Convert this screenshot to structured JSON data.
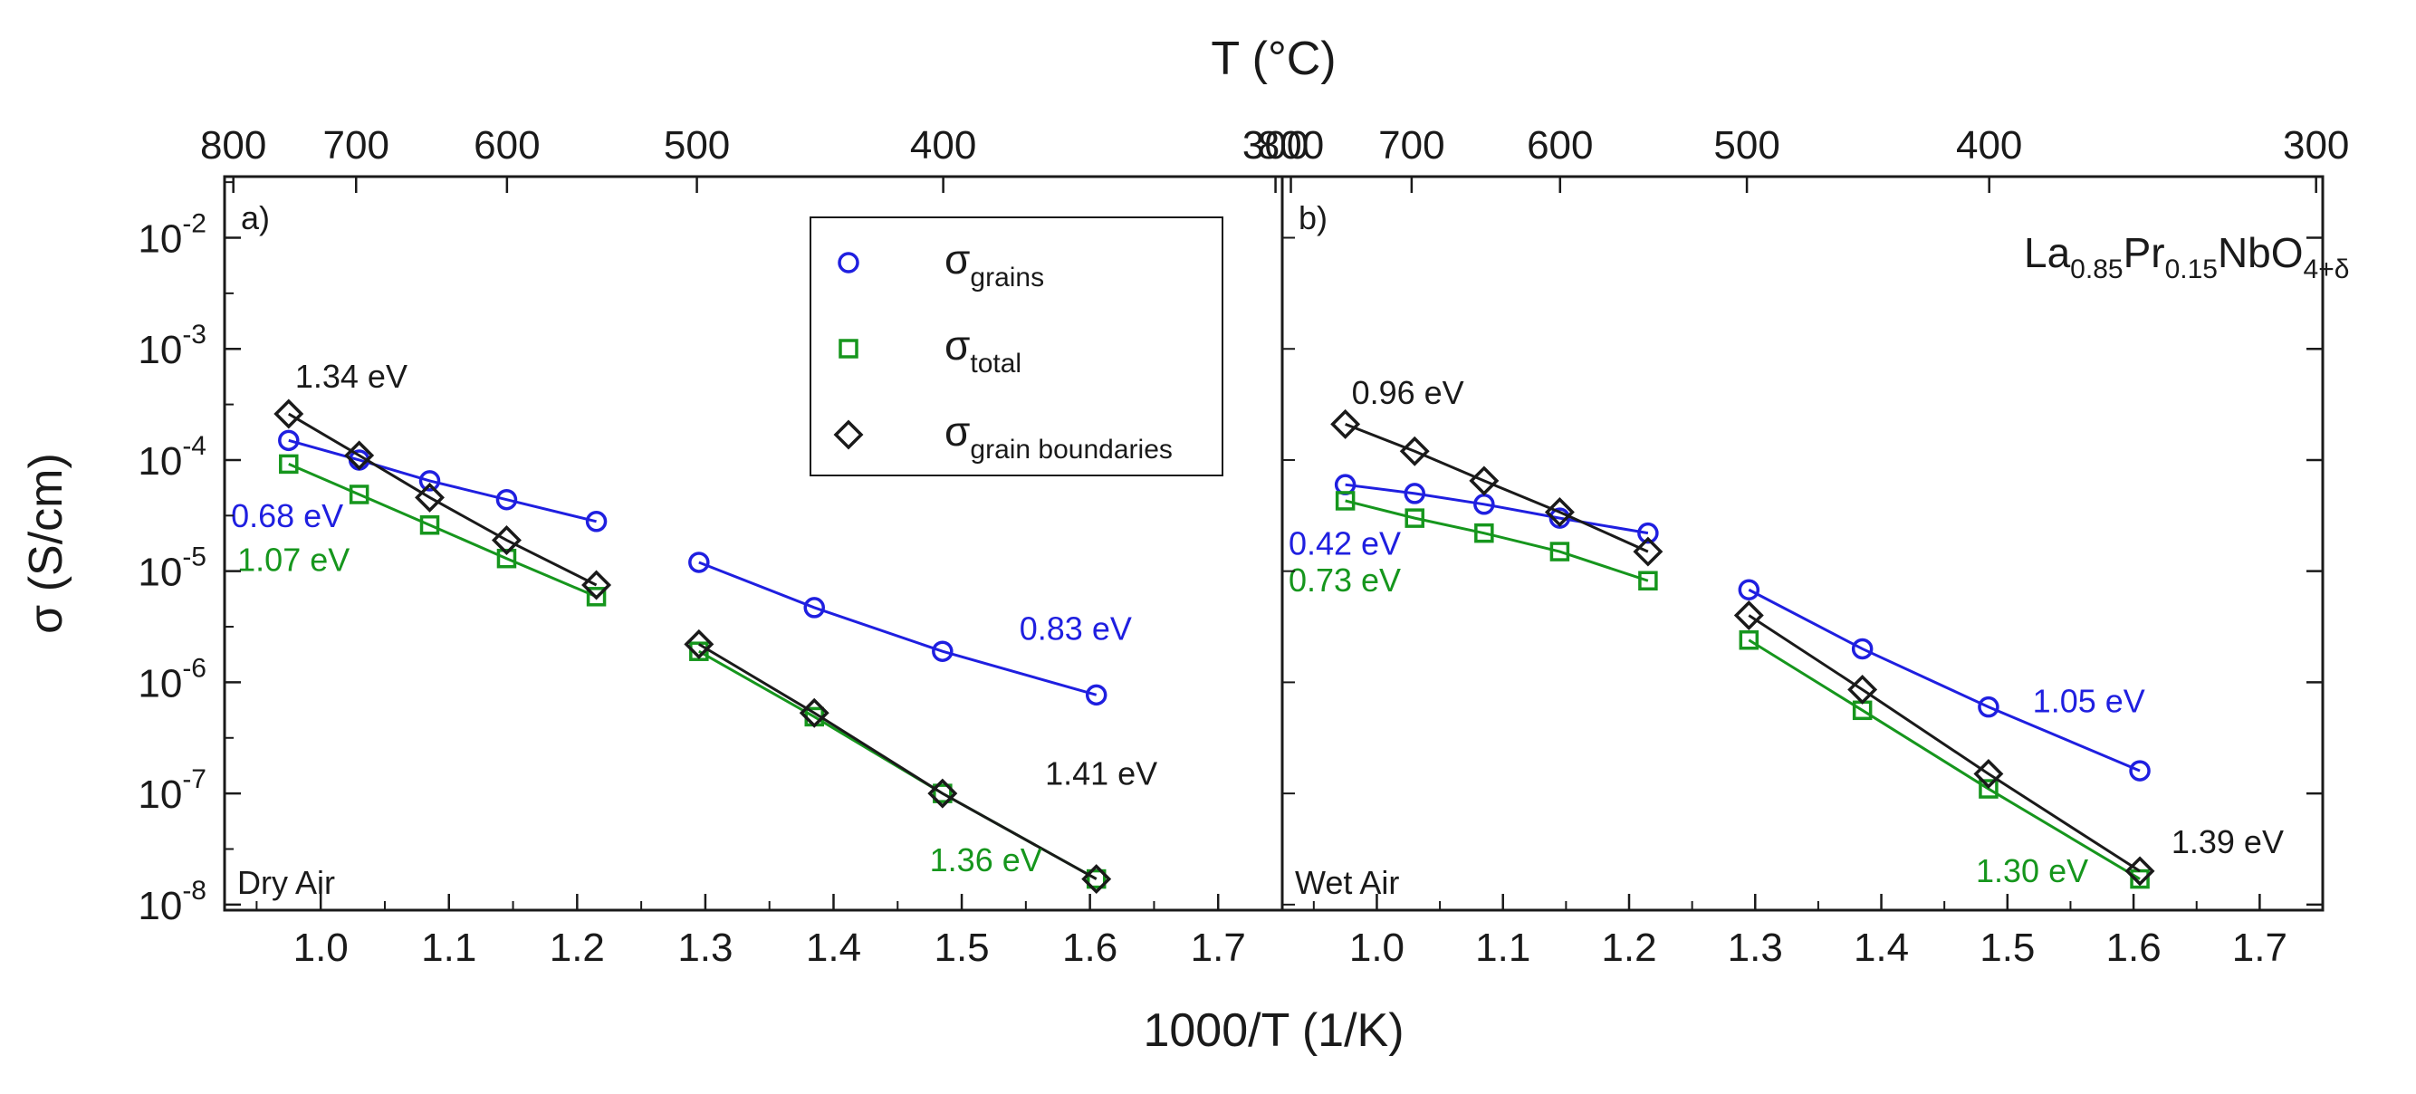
{
  "chart_data": {
    "type": "scatter",
    "xlabel": "1000/T (1/K)",
    "ylabel": "σ (S/cm)",
    "top_axis_label": "T (°C)",
    "x_scale": "linear",
    "y_scale": "log",
    "xlim": [
      0.925,
      1.75
    ],
    "ylim_log10": [
      -8.05,
      -1.45
    ],
    "x_ticks": [
      "1.0",
      "1.1",
      "1.2",
      "1.3",
      "1.4",
      "1.5",
      "1.6",
      "1.7"
    ],
    "y_ticks": [
      {
        "base": "10",
        "exp": "-8",
        "log": -8
      },
      {
        "base": "10",
        "exp": "-7",
        "log": -7
      },
      {
        "base": "10",
        "exp": "-6",
        "log": -6
      },
      {
        "base": "10",
        "exp": "-5",
        "log": -5
      },
      {
        "base": "10",
        "exp": "-4",
        "log": -4
      },
      {
        "base": "10",
        "exp": "-3",
        "log": -3
      },
      {
        "base": "10",
        "exp": "-2",
        "log": -2
      }
    ],
    "top_ticks_celsius": [
      800,
      700,
      600,
      500,
      400,
      300
    ],
    "legend": {
      "placement": "top-center of panel a",
      "items": [
        {
          "symbol": "σ",
          "sub": "grains",
          "series": "grains"
        },
        {
          "symbol": "σ",
          "sub": "total",
          "series": "total"
        },
        {
          "symbol": "σ",
          "sub": "grain boundaries",
          "series": "gb"
        }
      ]
    },
    "colors": {
      "grains": "#1f1fe0",
      "total": "#16961d",
      "gb": "#1a1a1a"
    },
    "markers": {
      "grains": "circle",
      "total": "square",
      "gb": "diamond"
    },
    "formula": {
      "parts": [
        "La",
        "0.85",
        "Pr",
        "0.15",
        "NbO",
        "4+δ"
      ]
    },
    "panels": [
      {
        "label": "a)",
        "condition": "Dry Air",
        "series": {
          "grains": {
            "high": {
              "x": [
                0.975,
                1.03,
                1.085,
                1.145,
                1.215
              ],
              "y": [
                0.00015,
                0.0001,
                6.5e-05,
                4.4e-05,
                2.8e-05
              ]
            },
            "low": {
              "x": [
                1.295,
                1.385,
                1.485,
                1.605
              ],
              "y": [
                1.2e-05,
                4.7e-06,
                1.9e-06,
                7.7e-07
              ]
            }
          },
          "total": {
            "high": {
              "x": [
                0.975,
                1.03,
                1.085,
                1.145,
                1.215
              ],
              "y": [
                9.2e-05,
                4.9e-05,
                2.6e-05,
                1.3e-05,
                5.9e-06
              ]
            },
            "low": {
              "x": [
                1.295,
                1.385,
                1.485,
                1.605
              ],
              "y": [
                1.9e-06,
                4.9e-07,
                1e-07,
                1.7e-08
              ]
            }
          },
          "gb": {
            "high": {
              "x": [
                0.975,
                1.03,
                1.085,
                1.145,
                1.215
              ],
              "y": [
                0.00026,
                0.00011,
                4.6e-05,
                1.9e-05,
                7.5e-06
              ]
            },
            "low": {
              "x": [
                1.295,
                1.385,
                1.485,
                1.605
              ],
              "y": [
                2.2e-06,
                5.3e-07,
                1e-07,
                1.7e-08
              ]
            }
          }
        },
        "annotations": [
          {
            "text": "1.34 eV",
            "series": "gb",
            "x": 0.98,
            "y": 0.00045
          },
          {
            "text": "0.68 eV",
            "series": "grains",
            "x": 0.93,
            "y": 2.5e-05
          },
          {
            "text": "1.07 eV",
            "series": "total",
            "x": 0.935,
            "y": 1e-05
          },
          {
            "text": "0.83 eV",
            "series": "grains",
            "x": 1.545,
            "y": 2.4e-06
          },
          {
            "text": "1.41 eV",
            "series": "gb",
            "x": 1.565,
            "y": 1.2e-07
          },
          {
            "text": "1.36 eV",
            "series": "total",
            "x": 1.475,
            "y": 2e-08
          }
        ]
      },
      {
        "label": "b)",
        "condition": "Wet Air",
        "series": {
          "grains": {
            "high": {
              "x": [
                0.975,
                1.03,
                1.085,
                1.145,
                1.215
              ],
              "y": [
                6e-05,
                5e-05,
                4e-05,
                3e-05,
                2.2e-05
              ]
            },
            "low": {
              "x": [
                1.295,
                1.385,
                1.485,
                1.605
              ],
              "y": [
                6.8e-06,
                2e-06,
                6e-07,
                1.6e-07
              ]
            }
          },
          "total": {
            "high": {
              "x": [
                0.975,
                1.03,
                1.085,
                1.145,
                1.215
              ],
              "y": [
                4.3e-05,
                3e-05,
                2.2e-05,
                1.5e-05,
                8.2e-06
              ]
            },
            "low": {
              "x": [
                1.295,
                1.385,
                1.485,
                1.605
              ],
              "y": [
                2.4e-06,
                5.6e-07,
                1.1e-07,
                1.7e-08
              ]
            }
          },
          "gb": {
            "high": {
              "x": [
                0.975,
                1.03,
                1.085,
                1.145,
                1.215
              ],
              "y": [
                0.00021,
                0.00012,
                6.5e-05,
                3.4e-05,
                1.5e-05
              ]
            },
            "low": {
              "x": [
                1.295,
                1.385,
                1.485,
                1.605
              ],
              "y": [
                4e-06,
                8.6e-07,
                1.5e-07,
                2e-08
              ]
            }
          }
        },
        "annotations": [
          {
            "text": "0.96 eV",
            "series": "gb",
            "x": 0.98,
            "y": 0.00032
          },
          {
            "text": "0.42 eV",
            "series": "grains",
            "x": 0.93,
            "y": 1.4e-05
          },
          {
            "text": "0.73 eV",
            "series": "total",
            "x": 0.93,
            "y": 6.6e-06
          },
          {
            "text": "1.05 eV",
            "series": "grains",
            "x": 1.52,
            "y": 5.4e-07
          },
          {
            "text": "1.39 eV",
            "series": "gb",
            "x": 1.63,
            "y": 2.9e-08
          },
          {
            "text": "1.30 eV",
            "series": "total",
            "x": 1.475,
            "y": 1.6e-08
          }
        ]
      }
    ]
  }
}
